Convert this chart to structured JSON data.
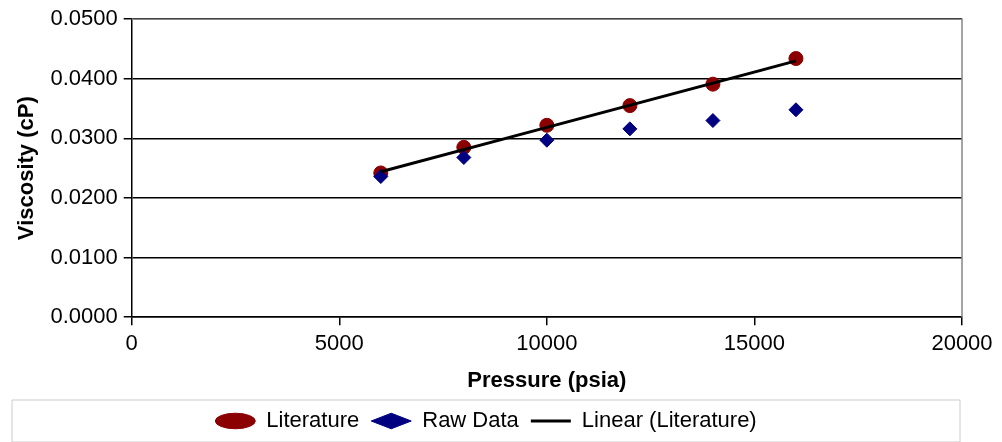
{
  "chart_data": {
    "type": "scatter",
    "xlabel": "Pressure (psia)",
    "ylabel": "Viscosity (cP)",
    "xlim": [
      0,
      20000
    ],
    "xticks": [
      0,
      5000,
      10000,
      15000,
      20000
    ],
    "ylim": [
      0,
      0.05
    ],
    "yticks": [
      {
        "value": 0,
        "label": "0.0000"
      },
      {
        "value": 0.01,
        "label": "0.0100"
      },
      {
        "value": 0.02,
        "label": "0.0200"
      },
      {
        "value": 0.03,
        "label": "0.0300"
      },
      {
        "value": 0.04,
        "label": "0.0400"
      },
      {
        "value": 0.05,
        "label": "0.0500"
      }
    ],
    "grid": "y",
    "legend": "bottom",
    "series": [
      {
        "name": "Literature",
        "type": "scatter",
        "marker": "circle",
        "color": "#8b0000",
        "x": [
          6000,
          8000,
          10000,
          12000,
          14000,
          16000
        ],
        "values": [
          0.0242,
          0.0285,
          0.0322,
          0.0355,
          0.0391,
          0.0434
        ]
      },
      {
        "name": "Raw Data",
        "type": "scatter",
        "marker": "diamond",
        "color": "#000080",
        "x": [
          6000,
          8000,
          10000,
          12000,
          14000,
          16000
        ],
        "values": [
          0.0236,
          0.0268,
          0.0297,
          0.0316,
          0.033,
          0.0348
        ]
      },
      {
        "name": "Linear (Literature)",
        "type": "line",
        "marker": "none",
        "line_style": "solid",
        "color": "#000000",
        "x": [
          6000,
          16000
        ],
        "values": [
          0.0244,
          0.043
        ]
      }
    ]
  }
}
